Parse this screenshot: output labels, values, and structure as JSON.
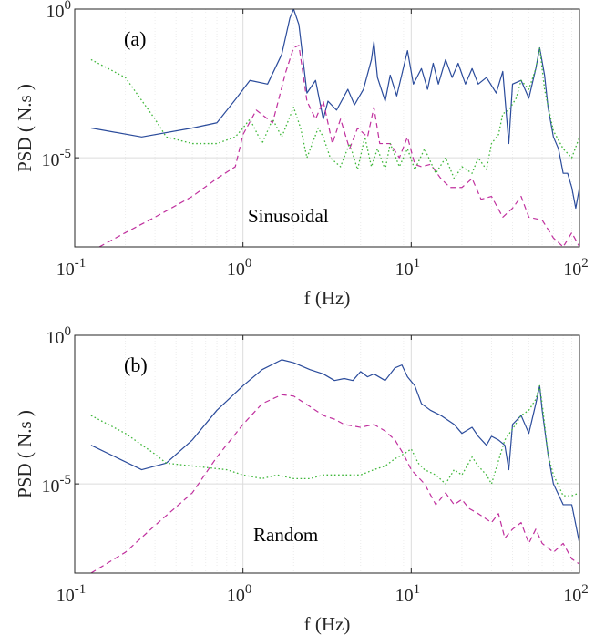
{
  "chart_data": [
    {
      "type": "line",
      "panel_label": "(a)",
      "annotation": "Sinusoidal",
      "xlabel": "f (Hz)",
      "ylabel": "PSD ( N.s )",
      "xscale": "log",
      "yscale": "log",
      "xlim": [
        0.1,
        100
      ],
      "ylim": [
        1e-08,
        1
      ],
      "x_tick_labels": [
        {
          "base": "10",
          "exp": "-1"
        },
        {
          "base": "10",
          "exp": "0"
        },
        {
          "base": "10",
          "exp": "1"
        },
        {
          "base": "10",
          "exp": "2"
        }
      ],
      "y_tick_labels": [
        {
          "base": "10",
          "exp": "-5"
        },
        {
          "base": "10",
          "exp": "0"
        }
      ],
      "grid": true,
      "series": [
        {
          "color": "#2a4b9b",
          "style": "solid",
          "x": [
            0.125,
            0.25,
            0.5,
            0.7,
            0.9,
            1.1,
            1.4,
            1.7,
            1.9,
            2.0,
            2.15,
            2.4,
            2.7,
            3.0,
            3.2,
            3.6,
            4.2,
            4.6,
            5.2,
            5.8,
            6.0,
            6.3,
            7.0,
            7.5,
            8.2,
            9.5,
            10.3,
            11.5,
            12.5,
            13.5,
            14.5,
            16.0,
            17.5,
            19.0,
            21.0,
            23.0,
            25.0,
            28.0,
            32.0,
            35.0,
            38.0,
            40.0,
            45.0,
            50.0,
            55.0,
            58.0,
            62.0,
            65.0,
            70.0,
            75.0,
            80.0,
            85.0,
            90.0,
            95.0,
            100.0
          ],
          "y": [
            0.0001,
            5e-05,
            0.0001,
            0.00015,
            0.0009,
            0.004,
            0.003,
            0.03,
            0.5,
            1.0,
            0.3,
            0.0015,
            0.004,
            0.0002,
            0.0008,
            0.0004,
            0.002,
            0.0006,
            0.002,
            0.02,
            0.08,
            0.005,
            0.0008,
            0.006,
            0.0012,
            0.04,
            0.003,
            0.01,
            0.002,
            0.015,
            0.003,
            0.02,
            0.005,
            0.015,
            0.003,
            0.01,
            0.003,
            0.005,
            0.0015,
            0.008,
            3e-05,
            0.003,
            0.004,
            0.001,
            0.01,
            0.05,
            0.006,
            0.0005,
            5e-05,
            2e-05,
            3e-06,
            3e-06,
            1e-06,
            2e-07,
            1e-06
          ]
        },
        {
          "color": "#c0309e",
          "style": "dashed",
          "x": [
            0.14,
            0.2,
            0.3,
            0.5,
            0.7,
            0.9,
            1.0,
            1.2,
            1.5,
            1.8,
            2.0,
            2.15,
            2.4,
            2.7,
            3.0,
            3.4,
            3.8,
            4.3,
            4.8,
            5.5,
            6.0,
            6.5,
            7.5,
            8.5,
            9.5,
            10.5,
            11.5,
            13.0,
            15.0,
            17.0,
            20.0,
            23.0,
            26.0,
            30.0,
            35.0,
            40.0,
            45.0,
            50.0,
            60.0,
            70.0,
            80.0,
            90.0,
            100.0
          ],
          "y": [
            1e-08,
            3e-08,
            1e-07,
            5e-07,
            2e-06,
            5e-06,
            6e-05,
            0.0004,
            0.00015,
            0.008,
            0.05,
            0.06,
            0.0008,
            0.0002,
            0.0008,
            3e-05,
            0.0002,
            2e-05,
            0.0001,
            5e-05,
            0.0005,
            3e-05,
            3e-05,
            1e-05,
            5e-05,
            6e-06,
            5e-06,
            6e-06,
            2e-06,
            1e-06,
            1e-06,
            2e-06,
            4e-07,
            5e-07,
            1e-07,
            2e-07,
            5e-07,
            1e-07,
            8e-08,
            2e-08,
            1e-08,
            3e-08,
            1e-08
          ]
        },
        {
          "color": "#3fb73a",
          "style": "dotted",
          "x": [
            0.125,
            0.2,
            0.3,
            0.35,
            0.5,
            0.7,
            0.9,
            1.0,
            1.1,
            1.3,
            1.5,
            1.7,
            2.0,
            2.2,
            2.4,
            2.8,
            3.0,
            3.3,
            3.8,
            4.3,
            4.8,
            5.3,
            5.8,
            6.3,
            7.0,
            7.5,
            8.5,
            9.5,
            10.5,
            12.0,
            14.0,
            16.0,
            18.0,
            20.0,
            23.0,
            25.0,
            28.0,
            30.0,
            33.0,
            35.0,
            38.0,
            42.0,
            45.0,
            50.0,
            55.0,
            58.0,
            62.0,
            70.0,
            80.0,
            90.0,
            100.0
          ],
          "y": [
            0.02,
            0.005,
            0.0002,
            5e-05,
            3e-05,
            3e-05,
            5e-05,
            0.0001,
            0.0002,
            3e-05,
            0.0002,
            5e-05,
            0.0005,
            0.0001,
            1e-05,
            0.0001,
            5e-05,
            1e-05,
            5e-06,
            3e-05,
            4e-06,
            5e-05,
            5e-06,
            2e-05,
            4e-06,
            3e-05,
            5e-06,
            2e-05,
            4e-06,
            2e-05,
            3e-06,
            1e-05,
            2e-06,
            5e-06,
            3e-06,
            1e-05,
            4e-06,
            3e-05,
            6e-05,
            0.0003,
            0.0004,
            0.001,
            0.004,
            0.002,
            0.01,
            0.05,
            0.002,
            8e-05,
            2e-05,
            1e-05,
            5e-05
          ]
        }
      ]
    },
    {
      "type": "line",
      "panel_label": "(b)",
      "annotation": "Random",
      "xlabel": "f (Hz)",
      "ylabel": "PSD ( N.s )",
      "xscale": "log",
      "yscale": "log",
      "xlim": [
        0.1,
        100
      ],
      "ylim": [
        1e-08,
        1
      ],
      "x_tick_labels": [
        {
          "base": "10",
          "exp": "-1"
        },
        {
          "base": "10",
          "exp": "0"
        },
        {
          "base": "10",
          "exp": "1"
        },
        {
          "base": "10",
          "exp": "2"
        }
      ],
      "y_tick_labels": [
        {
          "base": "10",
          "exp": "-5"
        },
        {
          "base": "10",
          "exp": "0"
        }
      ],
      "grid": true,
      "series": [
        {
          "color": "#2a4b9b",
          "style": "solid",
          "x": [
            0.125,
            0.25,
            0.35,
            0.5,
            0.7,
            1.0,
            1.3,
            1.7,
            2.0,
            2.5,
            3.0,
            3.5,
            4.0,
            4.5,
            5.0,
            5.5,
            6.0,
            7.0,
            8.0,
            8.8,
            9.5,
            10.5,
            11.5,
            13.0,
            15.0,
            18.0,
            20.0,
            23.0,
            25.0,
            28.0,
            30.0,
            33.0,
            36.0,
            38.0,
            40.0,
            45.0,
            50.0,
            55.0,
            58.0,
            60.0,
            65.0,
            70.0,
            80.0,
            90.0,
            100.0
          ],
          "y": [
            0.0002,
            3e-05,
            5e-05,
            0.0003,
            0.003,
            0.02,
            0.07,
            0.15,
            0.12,
            0.07,
            0.05,
            0.03,
            0.035,
            0.03,
            0.06,
            0.04,
            0.05,
            0.03,
            0.08,
            0.1,
            0.04,
            0.02,
            0.005,
            0.003,
            0.002,
            0.001,
            0.0005,
            0.0008,
            0.0004,
            0.0002,
            0.0004,
            0.0003,
            0.0002,
            3e-05,
            0.001,
            0.002,
            0.0005,
            0.005,
            0.02,
            0.003,
            0.0001,
            1e-05,
            2e-06,
            2e-06,
            1e-07
          ]
        },
        {
          "color": "#c0309e",
          "style": "dashed",
          "x": [
            0.125,
            0.2,
            0.3,
            0.5,
            0.7,
            1.0,
            1.3,
            1.7,
            2.0,
            2.5,
            3.0,
            3.5,
            4.0,
            5.0,
            6.0,
            7.0,
            8.0,
            9.0,
            10.0,
            12.0,
            14.0,
            16.0,
            18.0,
            20.0,
            22.0,
            25.0,
            30.0,
            33.0,
            36.0,
            40.0,
            45.0,
            50.0,
            55.0,
            60.0,
            70.0,
            80.0,
            90.0,
            100.0
          ],
          "y": [
            1e-08,
            5e-08,
            4e-07,
            5e-06,
            8e-05,
            0.001,
            0.005,
            0.01,
            0.009,
            0.004,
            0.002,
            0.0015,
            0.001,
            0.0008,
            0.001,
            0.0006,
            0.0003,
            0.0001,
            3e-05,
            1e-05,
            2e-06,
            5e-06,
            2e-06,
            3e-06,
            1.5e-06,
            1e-06,
            5e-07,
            1e-06,
            1.5e-07,
            3e-07,
            5e-07,
            1e-07,
            3e-07,
            1e-07,
            5e-08,
            1e-07,
            3e-08,
            2e-08
          ]
        },
        {
          "color": "#3fb73a",
          "style": "dotted",
          "x": [
            0.125,
            0.2,
            0.3,
            0.35,
            0.5,
            0.8,
            1.0,
            1.3,
            1.6,
            2.0,
            2.5,
            3.0,
            4.0,
            5.0,
            6.0,
            7.0,
            8.0,
            9.0,
            10.0,
            11.0,
            12.0,
            14.0,
            16.0,
            18.0,
            20.0,
            23.0,
            25.0,
            28.0,
            30.0,
            33.0,
            36.0,
            40.0,
            45.0,
            50.0,
            55.0,
            58.0,
            60.0,
            65.0,
            70.0,
            80.0,
            90.0,
            100.0
          ],
          "y": [
            0.002,
            0.0005,
            0.0001,
            5e-05,
            4e-05,
            3e-05,
            2e-05,
            1.5e-05,
            2e-05,
            1.5e-05,
            1.5e-05,
            2e-05,
            2e-05,
            2e-05,
            3e-05,
            4e-05,
            7e-05,
            0.0001,
            0.00015,
            5e-05,
            3e-05,
            2e-05,
            1e-05,
            3e-05,
            2e-05,
            8e-05,
            4e-05,
            2e-05,
            1e-05,
            6e-05,
            0.0003,
            0.0007,
            0.002,
            0.003,
            0.007,
            0.02,
            0.005,
            0.0001,
            2e-05,
            4e-06,
            4e-06,
            5e-06
          ]
        }
      ]
    }
  ]
}
